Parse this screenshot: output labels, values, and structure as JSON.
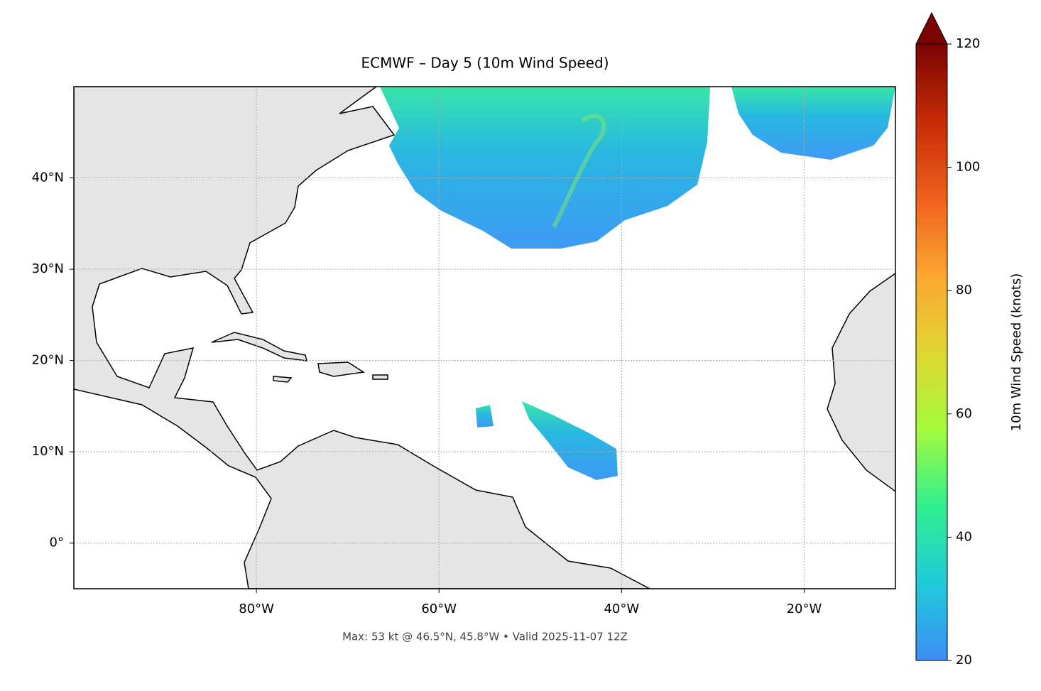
{
  "chart_data": {
    "type": "map",
    "title": "ECMWF – Day 5 (10m Wind Speed)",
    "footer": "Max: 53 kt @ 46.5°N, 45.8°W • Valid 2025-11-07 12Z",
    "xlim": [
      -100,
      -10
    ],
    "ylim": [
      -5,
      50
    ],
    "xticks": [
      {
        "value": -80,
        "label": "80°W"
      },
      {
        "value": -60,
        "label": "60°W"
      },
      {
        "value": -40,
        "label": "40°W"
      },
      {
        "value": -20,
        "label": "20°W"
      }
    ],
    "yticks": [
      {
        "value": 0,
        "label": "0°"
      },
      {
        "value": 10,
        "label": "10°N"
      },
      {
        "value": 20,
        "label": "20°N"
      },
      {
        "value": 30,
        "label": "30°N"
      },
      {
        "value": 40,
        "label": "40°N"
      }
    ],
    "grid": true,
    "colorbar": {
      "label": "10m Wind Speed (knots)",
      "lim": [
        20,
        120
      ],
      "ticks": [
        20,
        40,
        60,
        80,
        100,
        120
      ],
      "extend": "max",
      "colors": [
        "#3e8cf5",
        "#1ecbd9",
        "#2ff08f",
        "#a4fb3b",
        "#e0d632",
        "#fca631",
        "#f0601c",
        "#c52b06",
        "#7a0403"
      ]
    }
  }
}
